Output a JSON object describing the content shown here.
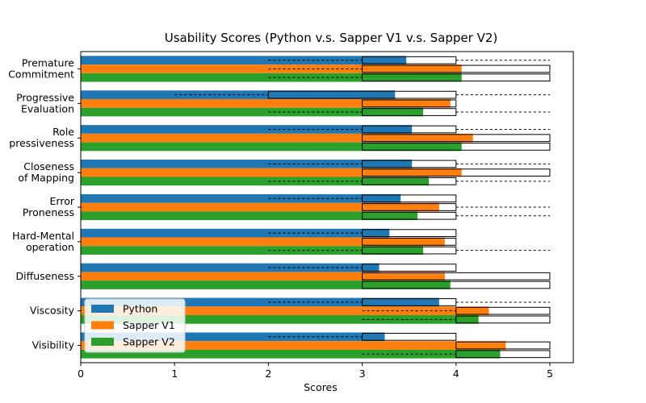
{
  "chart_data": {
    "type": "bar",
    "orientation": "horizontal",
    "title": "Usability Scores (Python v.s. Sapper V1 v.s. Sapper V2)",
    "xlabel": "Scores",
    "ylabel": "",
    "xlim": [
      0,
      5.25
    ],
    "xticks": [
      0,
      1,
      2,
      3,
      4,
      5
    ],
    "grid": false,
    "legend_position": "lower-left",
    "categories": [
      [
        "Premature",
        "Commitment"
      ],
      [
        "Progressive",
        "Evaluation"
      ],
      [
        "Role",
        "pressiveness"
      ],
      [
        "Closeness",
        "of Mapping"
      ],
      [
        "Error",
        "Proneness"
      ],
      [
        "Hard-Mental",
        "operation"
      ],
      [
        "Diffuseness"
      ],
      [
        "Viscosity"
      ],
      [
        "Visibility"
      ]
    ],
    "series": [
      {
        "name": "Python",
        "color": "#1f77b4",
        "values": [
          3.47,
          3.35,
          3.53,
          3.53,
          3.41,
          3.29,
          3.18,
          3.82,
          3.24
        ],
        "box": [
          [
            3,
            4,
            2,
            5
          ],
          [
            2,
            4,
            1,
            5
          ],
          [
            3,
            4,
            2,
            5
          ],
          [
            3,
            4,
            2,
            5
          ],
          [
            3,
            4,
            2,
            4
          ],
          [
            3,
            4,
            2,
            4
          ],
          [
            3,
            4,
            2,
            4
          ],
          [
            3,
            4,
            2,
            5
          ],
          [
            3,
            4,
            2,
            4
          ]
        ]
      },
      {
        "name": "Sapper V1",
        "color": "#ff7f0e",
        "values": [
          4.06,
          3.94,
          4.18,
          4.06,
          3.82,
          3.88,
          3.88,
          4.35,
          4.53
        ],
        "box": [
          [
            3,
            5,
            2,
            5
          ],
          [
            3,
            4,
            3,
            4
          ],
          [
            3,
            5,
            3,
            5
          ],
          [
            3,
            5,
            3,
            5
          ],
          [
            3,
            4,
            3,
            5
          ],
          [
            3,
            4,
            3,
            4
          ],
          [
            3,
            5,
            3,
            5
          ],
          [
            4,
            5,
            3,
            5
          ],
          [
            4,
            5,
            4,
            5
          ]
        ]
      },
      {
        "name": "Sapper V2",
        "color": "#2ca02c",
        "values": [
          4.06,
          3.65,
          4.06,
          3.71,
          3.59,
          3.65,
          3.94,
          4.24,
          4.47
        ],
        "box": [
          [
            3,
            5,
            2,
            5
          ],
          [
            3,
            4,
            2,
            5
          ],
          [
            3,
            5,
            3,
            5
          ],
          [
            3,
            4,
            2,
            5
          ],
          [
            3,
            4,
            3,
            5
          ],
          [
            3,
            4,
            2,
            5
          ],
          [
            3,
            5,
            3,
            5
          ],
          [
            4,
            5,
            3,
            5
          ],
          [
            4,
            5,
            3,
            5
          ]
        ]
      }
    ]
  }
}
